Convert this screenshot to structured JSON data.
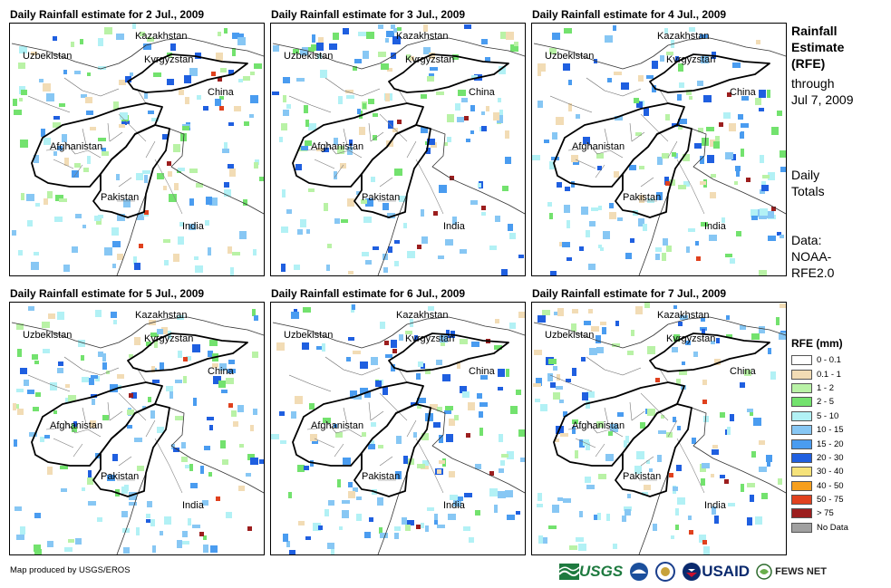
{
  "panels": [
    {
      "title": "Daily Rainfall estimate for 2 Jul., 2009"
    },
    {
      "title": "Daily Rainfall estimate for 3 Jul., 2009"
    },
    {
      "title": "Daily Rainfall estimate for 4 Jul., 2009"
    },
    {
      "title": "Daily Rainfall estimate for 5 Jul., 2009"
    },
    {
      "title": "Daily Rainfall estimate for 6 Jul., 2009"
    },
    {
      "title": "Daily Rainfall estimate for 7 Jul., 2009"
    }
  ],
  "country_labels": [
    "Kazakhstan",
    "Uzbekistan",
    "Kyrgyzstan",
    "China",
    "Afghanistan",
    "Pakistan",
    "India"
  ],
  "side": {
    "title_lines": [
      "Rainfall",
      "Estimate",
      "(RFE)"
    ],
    "through_lines": [
      "through",
      "Jul 7, 2009"
    ],
    "totals_lines": [
      "Daily",
      "Totals"
    ],
    "data_lines": [
      "Data:",
      "NOAA-",
      "RFE2.0"
    ]
  },
  "legend": {
    "title": "RFE (mm)",
    "items": [
      {
        "label": "0 - 0.1",
        "color": "#ffffff"
      },
      {
        "label": "0.1 - 1",
        "color": "#f2dcb5"
      },
      {
        "label": "1 - 2",
        "color": "#b9f2a6"
      },
      {
        "label": "2 - 5",
        "color": "#73e26e"
      },
      {
        "label": "5 - 10",
        "color": "#b2f1f5"
      },
      {
        "label": "10 - 15",
        "color": "#87c7f4"
      },
      {
        "label": "15 - 20",
        "color": "#4a9cf0"
      },
      {
        "label": "20 - 30",
        "color": "#1f5fe0"
      },
      {
        "label": "30 - 40",
        "color": "#f5e27a"
      },
      {
        "label": "40 - 50",
        "color": "#f79f1c"
      },
      {
        "label": "50 - 75",
        "color": "#e0411e"
      },
      {
        "label": "> 75",
        "color": "#9c1e1e"
      },
      {
        "label": "No Data",
        "color": "#a0a0a0"
      }
    ]
  },
  "credit": "Map produced by USGS/EROS",
  "logos": {
    "usgs": "USGS",
    "usaid": "USAID",
    "fews": "FEWS NET"
  }
}
